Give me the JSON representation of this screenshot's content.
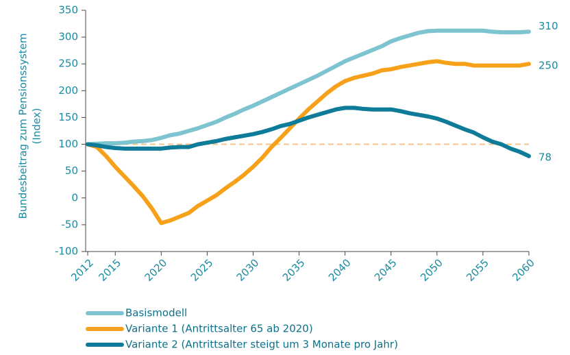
{
  "chart_data": {
    "type": "line",
    "ylabel": [
      "Bundesbeitrag zum Pensionssystem",
      "(Index)"
    ],
    "x": [
      2012,
      2013,
      2014,
      2015,
      2016,
      2017,
      2018,
      2019,
      2020,
      2021,
      2022,
      2023,
      2024,
      2025,
      2026,
      2027,
      2028,
      2029,
      2030,
      2031,
      2032,
      2033,
      2034,
      2035,
      2036,
      2037,
      2038,
      2039,
      2040,
      2041,
      2042,
      2043,
      2044,
      2045,
      2046,
      2047,
      2048,
      2049,
      2050,
      2051,
      2052,
      2053,
      2054,
      2055,
      2056,
      2057,
      2058,
      2059,
      2060
    ],
    "series": [
      {
        "name": "Basismodell",
        "color": "#7ec3d0",
        "values": [
          100,
          101,
          102,
          102,
          103,
          105,
          106,
          108,
          112,
          117,
          120,
          125,
          130,
          136,
          142,
          150,
          157,
          165,
          172,
          180,
          188,
          196,
          204,
          212,
          220,
          228,
          237,
          246,
          255,
          262,
          269,
          276,
          283,
          292,
          298,
          303,
          308,
          311,
          312,
          312,
          312,
          312,
          312,
          312,
          310,
          309,
          309,
          309,
          310
        ]
      },
      {
        "name": "Variante 1 (Antrittsalter 65 ab 2020)",
        "color": "#f7a11a",
        "values": [
          100,
          95,
          78,
          58,
          40,
          22,
          3,
          -20,
          -47,
          -42,
          -35,
          -28,
          -15,
          -5,
          5,
          18,
          30,
          43,
          58,
          75,
          95,
          112,
          130,
          148,
          165,
          180,
          195,
          208,
          218,
          224,
          228,
          232,
          238,
          240,
          244,
          247,
          250,
          253,
          255,
          252,
          250,
          250,
          247,
          247,
          247,
          247,
          247,
          247,
          250
        ]
      },
      {
        "name": "Variante 2 (Antrittsalter steigt um 3 Monate pro Jahr)",
        "color": "#0e7c99",
        "values": [
          100,
          98,
          95,
          93,
          92,
          92,
          92,
          92,
          92,
          94,
          95,
          95,
          100,
          103,
          106,
          110,
          113,
          116,
          119,
          123,
          128,
          134,
          138,
          144,
          150,
          155,
          160,
          165,
          168,
          168,
          166,
          165,
          165,
          165,
          162,
          158,
          155,
          152,
          148,
          142,
          135,
          128,
          122,
          113,
          105,
          100,
          92,
          86,
          78
        ]
      }
    ],
    "xlim": [
      2012,
      2060
    ],
    "xticks": [
      2012,
      2015,
      2020,
      2025,
      2030,
      2035,
      2040,
      2045,
      2050,
      2055,
      2060
    ],
    "ylim": [
      -100,
      350
    ],
    "yticks": [
      -100,
      -50,
      0,
      50,
      100,
      150,
      200,
      250,
      300,
      350
    ],
    "reference_line": {
      "value": 100,
      "color": "#f5c48a",
      "dashed": true
    }
  }
}
